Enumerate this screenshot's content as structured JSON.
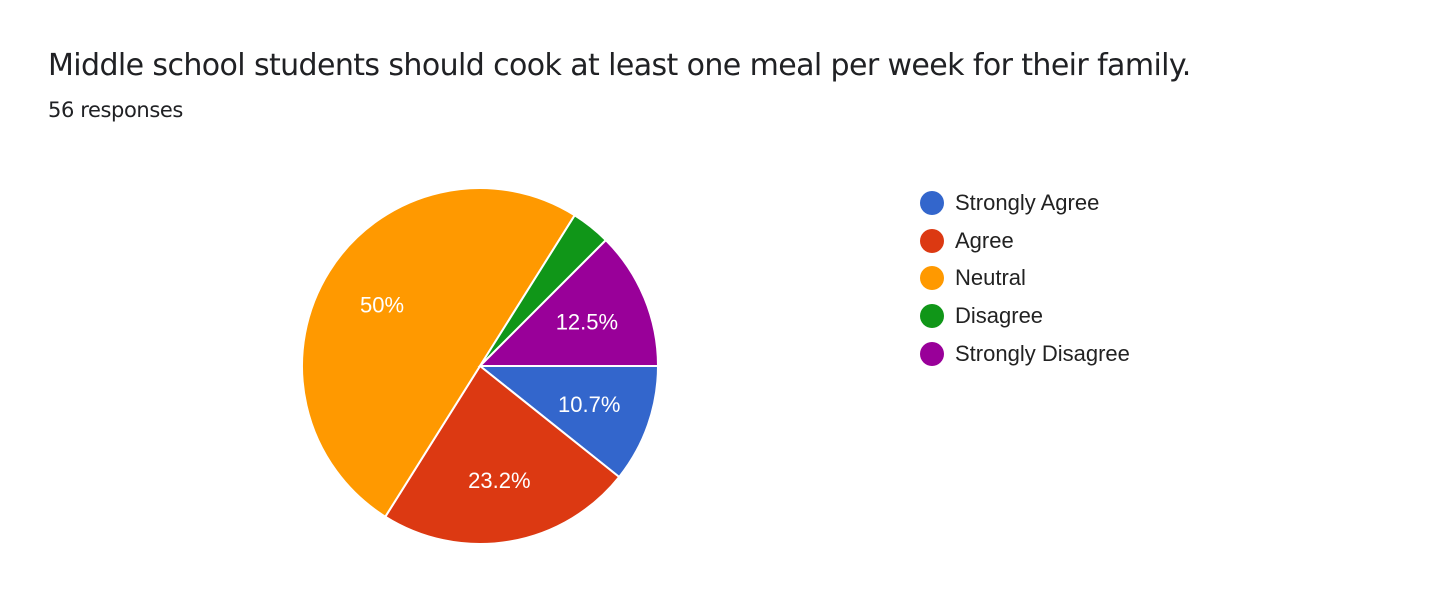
{
  "header": {
    "title": "Middle school students should cook at least one meal per week for their family.",
    "responses": "56 responses"
  },
  "chart_data": {
    "type": "pie",
    "title": "Middle school students should cook at least one meal per week for their family.",
    "subtitle": "56 responses",
    "total": 56,
    "categories": [
      "Strongly Agree",
      "Agree",
      "Neutral",
      "Disagree",
      "Strongly Disagree"
    ],
    "values": [
      6,
      13,
      28,
      2,
      7
    ],
    "percentages": [
      10.7,
      23.2,
      50,
      3.6,
      12.5
    ],
    "slice_labels": [
      "10.7%",
      "23.2%",
      "50%",
      "",
      "12.5%"
    ],
    "colors": [
      "#3366cc",
      "#dc3912",
      "#ff9900",
      "#109618",
      "#990099"
    ],
    "start_angle": "3 o'clock, clockwise",
    "legend_position": "right"
  },
  "legend": {
    "items": [
      {
        "label": "Strongly Agree",
        "color": "#3366cc"
      },
      {
        "label": "Agree",
        "color": "#dc3912"
      },
      {
        "label": "Neutral",
        "color": "#ff9900"
      },
      {
        "label": "Disagree",
        "color": "#109618"
      },
      {
        "label": "Strongly Disagree",
        "color": "#990099"
      }
    ]
  }
}
